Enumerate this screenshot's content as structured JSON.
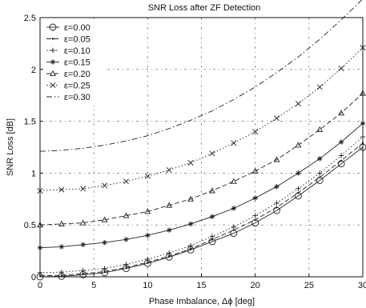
{
  "chart_data": {
    "type": "line",
    "title": "SNR Loss after ZF Detection",
    "xlabel": "Phase Imbalance, Δϕ [deg]",
    "ylabel": "SNR Loss [dB]",
    "xlim": [
      0,
      30
    ],
    "ylim": [
      0,
      2.5
    ],
    "xticks": [
      0,
      5,
      10,
      15,
      20,
      25,
      30
    ],
    "yticks": [
      0,
      0.5,
      1,
      1.5,
      2,
      2.5
    ],
    "xtick_labels": [
      "0",
      "5",
      "10",
      "15",
      "20",
      "25",
      "30"
    ],
    "ytick_labels": [
      "0",
      "0.5",
      "1",
      "1.5",
      "2",
      "2.5"
    ],
    "grid": true,
    "legend_position": "top-left",
    "x": [
      0,
      2,
      4,
      6,
      8,
      10,
      12,
      14,
      16,
      18,
      20,
      22,
      24,
      26,
      28,
      30
    ],
    "series": [
      {
        "name": "ε=0.00",
        "marker": "circle",
        "dash": "solid",
        "values": [
          0.0,
          0.005,
          0.02,
          0.04,
          0.08,
          0.13,
          0.19,
          0.26,
          0.34,
          0.42,
          0.52,
          0.64,
          0.78,
          0.93,
          1.09,
          1.25
        ]
      },
      {
        "name": "ε=0.05",
        "marker": "point",
        "dash": "dashed",
        "values": [
          0.01,
          0.015,
          0.03,
          0.05,
          0.09,
          0.14,
          0.2,
          0.27,
          0.36,
          0.45,
          0.55,
          0.67,
          0.81,
          0.96,
          1.12,
          1.29
        ]
      },
      {
        "name": "ε=0.10",
        "marker": "plus",
        "dash": "dotted",
        "values": [
          0.04,
          0.045,
          0.06,
          0.08,
          0.12,
          0.17,
          0.23,
          0.3,
          0.39,
          0.48,
          0.59,
          0.71,
          0.85,
          1.0,
          1.17,
          1.35
        ]
      },
      {
        "name": "ε=0.15",
        "marker": "star",
        "dash": "solid",
        "values": [
          0.28,
          0.29,
          0.31,
          0.33,
          0.36,
          0.4,
          0.45,
          0.51,
          0.58,
          0.66,
          0.76,
          0.87,
          1.0,
          1.14,
          1.3,
          1.48
        ]
      },
      {
        "name": "ε=0.20",
        "marker": "triangle",
        "dash": "dashed",
        "values": [
          0.5,
          0.51,
          0.52,
          0.55,
          0.59,
          0.63,
          0.69,
          0.75,
          0.83,
          0.92,
          1.02,
          1.13,
          1.27,
          1.42,
          1.58,
          1.77
        ]
      },
      {
        "name": "ε=0.25",
        "marker": "x",
        "dash": "dotted",
        "values": [
          0.83,
          0.84,
          0.85,
          0.88,
          0.92,
          0.97,
          1.03,
          1.1,
          1.19,
          1.29,
          1.4,
          1.53,
          1.67,
          1.83,
          2.01,
          2.21
        ]
      },
      {
        "name": "ε=0.30",
        "marker": "none",
        "dash": "dashdot",
        "values": [
          1.21,
          1.22,
          1.24,
          1.27,
          1.31,
          1.36,
          1.43,
          1.51,
          1.6,
          1.71,
          1.83,
          1.97,
          2.12,
          2.29,
          2.48,
          2.68
        ]
      }
    ]
  }
}
